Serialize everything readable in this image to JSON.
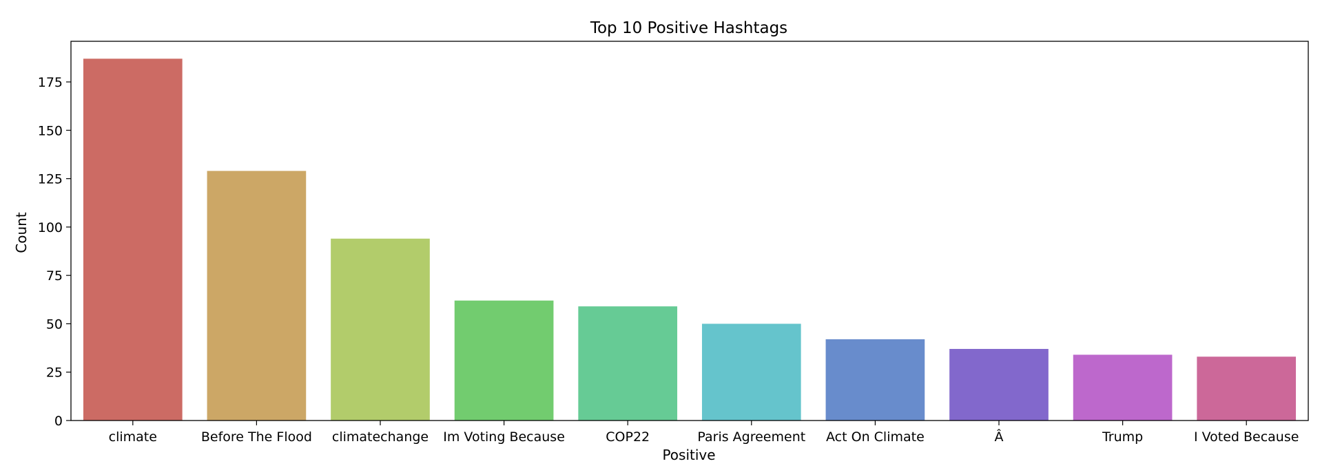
{
  "chart_data": {
    "type": "bar",
    "title": "Top 10 Positive Hashtags",
    "xlabel": "Positive",
    "ylabel": "Count",
    "categories": [
      "climate",
      "Before The Flood",
      "climatechange",
      "Im Voting Because",
      "COP22",
      "Paris Agreement",
      "Act On Climate",
      "Â",
      "Trump",
      "I Voted Because"
    ],
    "values": [
      187,
      129,
      94,
      62,
      59,
      50,
      42,
      37,
      34,
      33
    ],
    "colors": [
      "#cc6b64",
      "#cca766",
      "#b2cc6b",
      "#72cc6f",
      "#66cb95",
      "#65c4cc",
      "#688ccc",
      "#8268cc",
      "#bd68cc",
      "#cc6899"
    ],
    "ylim": [
      0,
      196
    ],
    "yticks": [
      0,
      25,
      50,
      75,
      100,
      125,
      150,
      175
    ],
    "grid": false,
    "legend": "none"
  }
}
